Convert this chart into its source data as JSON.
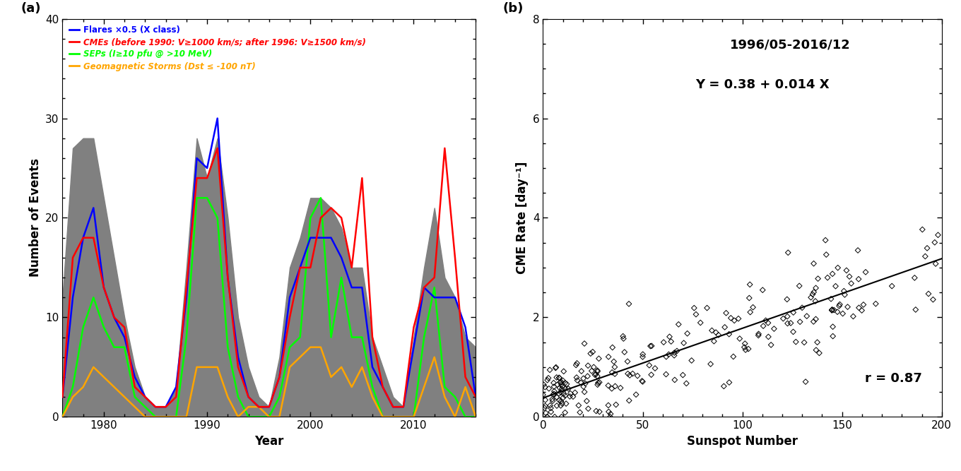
{
  "panel_a": {
    "xlabel": "Year",
    "ylabel": "Number of Events",
    "xlim": [
      1976,
      2016
    ],
    "ylim": [
      0,
      40
    ],
    "yticks": [
      0,
      10,
      20,
      30,
      40
    ],
    "xtick_positions": [
      1980,
      1990,
      2000,
      2010
    ],
    "legend_labels": [
      "Flares ×0.5 (X class)",
      "CMEs (before 1990: V≥1000 km/s; after 1996: V≥1500 km/s)",
      "SEPs (I≥10 pfu @ >10 MeV)",
      "Geomagnetic Storms (Dst ≤ -100 nT)"
    ],
    "legend_colors": [
      "blue",
      "red",
      "green",
      "orange"
    ],
    "sunspot_years": [
      1976,
      1977,
      1978,
      1979,
      1980,
      1981,
      1982,
      1983,
      1984,
      1985,
      1986,
      1987,
      1988,
      1989,
      1990,
      1991,
      1992,
      1993,
      1994,
      1995,
      1996,
      1997,
      1998,
      1999,
      2000,
      2001,
      2002,
      2003,
      2004,
      2005,
      2006,
      2007,
      2008,
      2009,
      2010,
      2011,
      2012,
      2013,
      2014,
      2015,
      2016
    ],
    "sunspot_values": [
      12,
      27,
      28,
      28,
      22,
      16,
      10,
      5,
      2,
      1,
      1,
      3,
      15,
      28,
      24,
      28,
      20,
      10,
      5,
      2,
      1,
      6,
      15,
      18,
      22,
      22,
      21,
      19,
      15,
      15,
      8,
      5,
      2,
      1,
      8,
      15,
      21,
      14,
      12,
      8,
      7
    ],
    "flares_years": [
      1976,
      1977,
      1978,
      1979,
      1980,
      1981,
      1982,
      1983,
      1984,
      1985,
      1986,
      1987,
      1988,
      1989,
      1990,
      1991,
      1992,
      1993,
      1994,
      1995,
      1996,
      1997,
      1998,
      1999,
      2000,
      2001,
      2002,
      2003,
      2004,
      2005,
      2006,
      2007,
      2008,
      2009,
      2010,
      2011,
      2012,
      2013,
      2014,
      2015,
      2016
    ],
    "flares_values": [
      2,
      12,
      18,
      21,
      13,
      10,
      8,
      4,
      2,
      1,
      1,
      3,
      12,
      26,
      25,
      30,
      14,
      6,
      2,
      1,
      1,
      4,
      12,
      15,
      18,
      18,
      18,
      16,
      13,
      13,
      5,
      3,
      1,
      1,
      7,
      13,
      12,
      12,
      12,
      9,
      2
    ],
    "cmes_years": [
      1976,
      1977,
      1978,
      1979,
      1980,
      1981,
      1982,
      1983,
      1984,
      1985,
      1986,
      1987,
      1988,
      1989,
      1990,
      1991,
      1992,
      1993,
      1994,
      1995,
      1996,
      1997,
      1998,
      1999,
      2000,
      2001,
      2002,
      2003,
      2004,
      2005,
      2006,
      2007,
      2008,
      2009,
      2010,
      2011,
      2012,
      2013,
      2014,
      2015,
      2016
    ],
    "cmes_values": [
      2,
      16,
      18,
      18,
      13,
      10,
      9,
      3,
      2,
      1,
      1,
      2,
      13,
      24,
      24,
      27,
      14,
      5,
      2,
      1,
      1,
      4,
      10,
      15,
      15,
      20,
      21,
      20,
      15,
      24,
      8,
      3,
      1,
      1,
      9,
      13,
      14,
      27,
      16,
      4,
      2
    ],
    "seps_years": [
      1976,
      1977,
      1978,
      1979,
      1980,
      1981,
      1982,
      1983,
      1984,
      1985,
      1986,
      1987,
      1988,
      1989,
      1990,
      1991,
      1992,
      1993,
      1994,
      1995,
      1996,
      1997,
      1998,
      1999,
      2000,
      2001,
      2002,
      2003,
      2004,
      2005,
      2006,
      2007,
      2008,
      2009,
      2010,
      2011,
      2012,
      2013,
      2014,
      2015,
      2016
    ],
    "seps_values": [
      0,
      3,
      9,
      12,
      9,
      7,
      7,
      2,
      1,
      0,
      0,
      0,
      8,
      22,
      22,
      20,
      7,
      2,
      0,
      0,
      0,
      2,
      7,
      8,
      20,
      22,
      8,
      14,
      8,
      8,
      3,
      0,
      0,
      0,
      0,
      8,
      13,
      3,
      2,
      0,
      0
    ],
    "storms_years": [
      1976,
      1977,
      1978,
      1979,
      1980,
      1981,
      1982,
      1983,
      1984,
      1985,
      1986,
      1987,
      1988,
      1989,
      1990,
      1991,
      1992,
      1993,
      1994,
      1995,
      1996,
      1997,
      1998,
      1999,
      2000,
      2001,
      2002,
      2003,
      2004,
      2005,
      2006,
      2007,
      2008,
      2009,
      2010,
      2011,
      2012,
      2013,
      2014,
      2015,
      2016
    ],
    "storms_values": [
      0,
      2,
      3,
      5,
      4,
      3,
      2,
      1,
      0,
      0,
      0,
      0,
      0,
      5,
      5,
      5,
      2,
      0,
      1,
      1,
      0,
      0,
      5,
      6,
      7,
      7,
      4,
      5,
      3,
      5,
      2,
      0,
      0,
      0,
      0,
      3,
      6,
      2,
      0,
      3,
      0
    ]
  },
  "panel_b": {
    "title_line1": "1996/05-2016/12",
    "title_line2": "Y = 0.38 + 0.014 X",
    "xlabel": "Sunspot Number",
    "ylabel": "CME Rate [day⁻¹]",
    "xlim": [
      0,
      200
    ],
    "ylim": [
      0,
      8
    ],
    "xticks": [
      0,
      50,
      100,
      150,
      200
    ],
    "yticks": [
      0,
      2,
      4,
      6,
      8
    ],
    "regression_label": "r = 0.87",
    "intercept": 0.38,
    "slope": 0.014
  },
  "background_color": "#ffffff"
}
